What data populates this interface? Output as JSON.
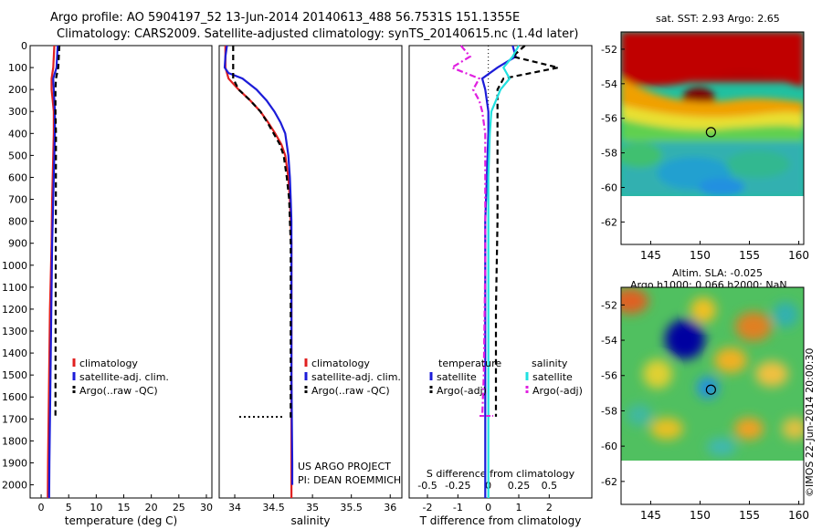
{
  "header": {
    "line1": "Argo profile: AO 5904197_52 13-Jun-2014 20140613_488 56.7531S 151.1355E",
    "line2": "Climatology: CARS2009. Satellite-adjusted climatology: synTS_20140615.nc (1.4d later)"
  },
  "colors": {
    "clim": "#e02020",
    "sat": "#1c1cd8",
    "argo": "#000000",
    "sal_sat": "#20e0e0",
    "sal_argo": "#e020e0"
  },
  "chart_data": [
    {
      "type": "line",
      "xlabel": "temperature (deg C)",
      "xlim": [
        -2,
        31
      ],
      "xticks": [
        0,
        5,
        10,
        15,
        20,
        25,
        30
      ],
      "ylim": [
        0,
        2060
      ],
      "yticks": [
        0,
        100,
        200,
        300,
        400,
        500,
        600,
        700,
        800,
        900,
        1000,
        1100,
        1200,
        1300,
        1400,
        1500,
        1600,
        1700,
        1800,
        1900,
        2000
      ],
      "legend": [
        "climatology",
        "satellite-adj. clim.",
        "Argo(..raw -QC)"
      ],
      "series": [
        {
          "name": "climatology",
          "color": "#e02020",
          "style": "solid",
          "x": [
            2.4,
            2.3,
            2.2,
            1.9,
            1.9,
            2.1,
            2.3,
            2.3,
            2.2,
            2.1,
            2.0,
            1.95,
            1.9,
            1.8,
            1.7,
            1.6,
            1.55,
            1.5,
            1.45,
            1.4,
            1.35,
            1.3,
            1.25,
            1.2
          ],
          "y": [
            0,
            50,
            100,
            150,
            200,
            250,
            300,
            400,
            500,
            600,
            700,
            800,
            900,
            1000,
            1100,
            1200,
            1300,
            1400,
            1500,
            1600,
            1700,
            1800,
            1900,
            2060
          ]
        },
        {
          "name": "satellite-adj. clim.",
          "color": "#1c1cd8",
          "style": "solid",
          "x": [
            3.0,
            2.9,
            2.8,
            2.2,
            2.3,
            2.4,
            2.5,
            2.5,
            2.4,
            2.3,
            2.2,
            2.1,
            2.0,
            1.95,
            1.9,
            1.85,
            1.8,
            1.75,
            1.7,
            1.65,
            1.6,
            1.55,
            1.5,
            1.45
          ],
          "y": [
            0,
            50,
            100,
            150,
            200,
            250,
            300,
            400,
            500,
            600,
            700,
            800,
            900,
            1000,
            1100,
            1200,
            1300,
            1400,
            1500,
            1600,
            1700,
            1800,
            1900,
            2060
          ]
        },
        {
          "name": "Argo(..raw -QC)",
          "color": "#000000",
          "style": "dashed",
          "x": [
            3.3,
            3.2,
            3.1,
            2.7,
            2.6,
            2.6,
            2.6,
            2.7,
            2.6
          ],
          "y": [
            0,
            50,
            100,
            150,
            200,
            250,
            300,
            400,
            1690
          ]
        }
      ]
    },
    {
      "type": "line",
      "xlabel": "salinity",
      "xlim": [
        33.8,
        36.15
      ],
      "xticks": [
        34,
        34.5,
        35,
        35.5,
        36
      ],
      "ylim": [
        0,
        2060
      ],
      "legend": [
        "climatology",
        "satellite-adj. clim.",
        "Argo(..raw -QC)"
      ],
      "annotation": [
        "US ARGO PROJECT",
        "PI: DEAN ROEMMICH"
      ],
      "series": [
        {
          "name": "climatology",
          "color": "#e02020",
          "style": "solid",
          "x": [
            33.88,
            33.88,
            33.92,
            34.05,
            34.2,
            34.33,
            34.43,
            34.52,
            34.6,
            34.65,
            34.69,
            34.71,
            34.72,
            34.73,
            34.73,
            34.73,
            34.73,
            34.73
          ],
          "y": [
            0,
            100,
            150,
            200,
            250,
            300,
            350,
            400,
            450,
            500,
            600,
            700,
            800,
            900,
            1000,
            1500,
            1900,
            2060
          ]
        },
        {
          "name": "satellite-adj. clim.",
          "color": "#1c1cd8",
          "style": "solid",
          "x": [
            33.9,
            33.88,
            33.87,
            33.92,
            34.1,
            34.28,
            34.41,
            34.51,
            34.59,
            34.65,
            34.69,
            34.71,
            34.72,
            34.73,
            34.73,
            34.73,
            34.74,
            34.74
          ],
          "y": [
            0,
            50,
            100,
            125,
            150,
            200,
            250,
            300,
            350,
            400,
            500,
            600,
            700,
            800,
            900,
            1500,
            1900,
            2000
          ]
        },
        {
          "name": "Argo(..raw -QC)",
          "color": "#000000",
          "style": "dashed",
          "x": [
            33.98,
            33.98,
            34.05,
            34.2,
            34.33,
            34.42,
            34.5,
            34.58,
            34.63,
            34.67,
            34.7,
            34.71,
            34.72,
            34.72
          ],
          "y": [
            0,
            150,
            200,
            250,
            300,
            350,
            400,
            450,
            500,
            600,
            700,
            800,
            900,
            1700
          ]
        }
      ]
    },
    {
      "type": "line",
      "xlabel": "T difference from climatology",
      "xlabel2": "S difference from climatology",
      "xlim": [
        -2.6,
        3.4
      ],
      "xticks": [
        -2,
        -1,
        0,
        1,
        2
      ],
      "xticks_s": [
        -0.5,
        -0.25,
        0,
        0.25,
        0.5
      ],
      "ylim": [
        0,
        2060
      ],
      "legend_t_title": "temperature",
      "legend_s_title": "salinity",
      "legend": [
        "satellite",
        "Argo(-adj)",
        "satellite",
        "Argo(-adj)"
      ],
      "series": [
        {
          "name": "satellite",
          "color": "#1c1cd8",
          "style": "solid",
          "x": [
            0.8,
            0.9,
            0.3,
            -0.2,
            -0.1,
            0.0,
            0.0,
            -0.05,
            -0.1,
            -0.1,
            -0.1,
            -0.1,
            -0.1
          ],
          "y": [
            0,
            50,
            100,
            150,
            200,
            300,
            400,
            600,
            800,
            1200,
            1600,
            1900,
            2060
          ]
        },
        {
          "name": "Argo(-adj)",
          "color": "#000000",
          "style": "dashed",
          "x": [
            1.2,
            0.8,
            2.3,
            0.5,
            0.3,
            0.3,
            0.3,
            0.3,
            0.3,
            0.25,
            0.25,
            0.25
          ],
          "y": [
            0,
            50,
            100,
            150,
            200,
            300,
            400,
            600,
            800,
            1200,
            1600,
            1690
          ]
        },
        {
          "name": "satellite",
          "color": "#20e0e0",
          "style": "solid",
          "x": [
            1.0,
            0.8,
            0.5,
            0.7,
            0.4,
            0.25,
            0.1,
            0.05,
            0.0,
            0.0,
            0.0,
            0.0
          ],
          "y": [
            0,
            50,
            100,
            150,
            200,
            250,
            300,
            400,
            600,
            1000,
            1600,
            2060
          ]
        },
        {
          "name": "Argo(-adj)",
          "color": "#e020e0",
          "style": "dashdot",
          "x": [
            -0.9,
            -0.6,
            -1.2,
            -0.3,
            -0.5,
            -0.3,
            -0.2,
            -0.1,
            -0.1,
            -0.1,
            -0.15,
            -0.2
          ],
          "y": [
            0,
            50,
            100,
            150,
            200,
            250,
            300,
            400,
            600,
            1000,
            1500,
            1690
          ]
        }
      ]
    },
    {
      "type": "heatmap",
      "title": "sat. SST: 2.93 Argo: 2.65",
      "xlim": [
        142,
        160.5
      ],
      "xticks": [
        145,
        150,
        155,
        160
      ],
      "ylim": [
        -63.3,
        -51
      ],
      "yticks": [
        -52,
        -54,
        -56,
        -58,
        -60,
        -62
      ],
      "marker": {
        "lon": 151.1,
        "lat": -56.8
      }
    },
    {
      "type": "heatmap",
      "title": "Altim. SLA: -0.025",
      "subtitle": "Argo h1000: 0.066 h2000: NaN",
      "xlim": [
        142,
        160.5
      ],
      "xticks": [
        145,
        150,
        155,
        160
      ],
      "ylim": [
        -63.3,
        -51
      ],
      "yticks": [
        -52,
        -54,
        -56,
        -58,
        -60,
        -62
      ],
      "marker": {
        "lon": 151.1,
        "lat": -56.8
      }
    }
  ],
  "credit": "©IMOS 22-Jun-2014 20:00:30"
}
